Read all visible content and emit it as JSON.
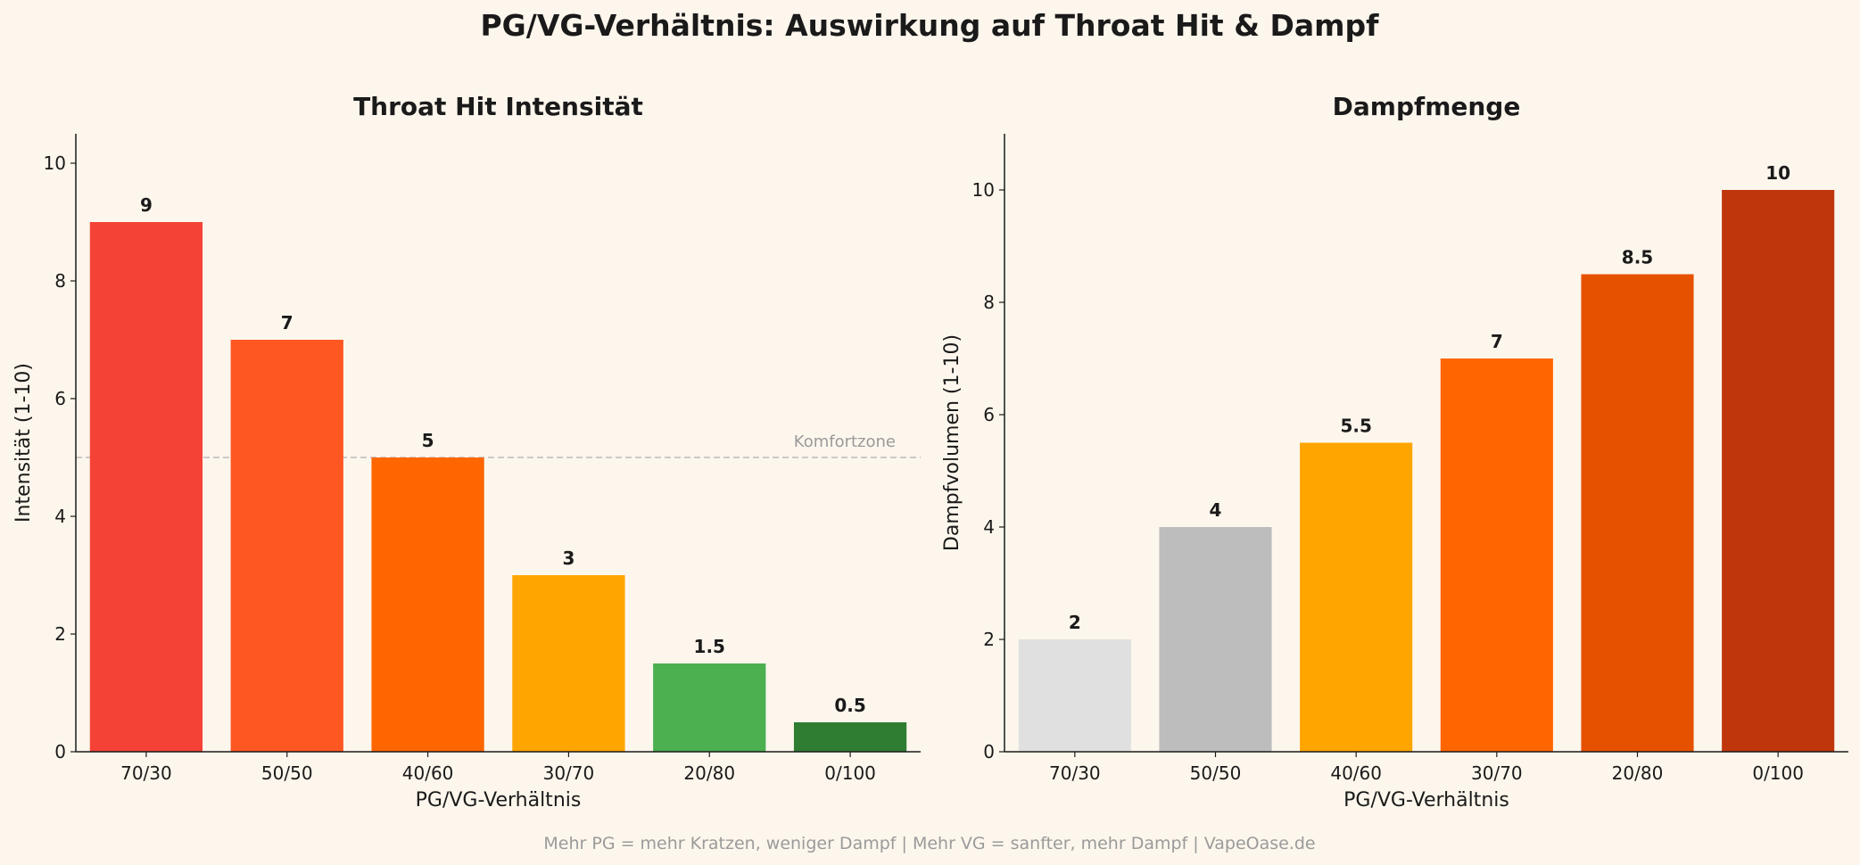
{
  "title": "PG/VG-Verhältnis: Auswirkung auf Throat Hit & Dampf",
  "footnote": "Mehr PG = mehr Kratzen, weniger Dampf | Mehr VG = sanfter, mehr Dampf | VapeOase.de",
  "chart_data": [
    {
      "type": "bar",
      "title": "Throat Hit Intensität",
      "xlabel": "PG/VG-Verhältnis",
      "ylabel": "Intensität (1-10)",
      "categories": [
        "70/30",
        "50/50",
        "40/60",
        "30/70",
        "20/80",
        "0/100"
      ],
      "values": [
        9,
        7,
        5,
        3,
        1.5,
        0.5
      ],
      "value_labels": [
        "9",
        "7",
        "5",
        "3",
        "1.5",
        "0.5"
      ],
      "colors": [
        "#f44336",
        "#ff5722",
        "#ff6600",
        "#ffa500",
        "#4caf50",
        "#2e7d32"
      ],
      "ylim": [
        0,
        10.5
      ],
      "yticks": [
        0,
        2,
        4,
        6,
        8,
        10
      ],
      "reference_line": {
        "value": 5,
        "label": "Komfortzone",
        "color": "#bbbbbb",
        "style": "dashed"
      },
      "grid": false
    },
    {
      "type": "bar",
      "title": "Dampfmenge",
      "xlabel": "PG/VG-Verhältnis",
      "ylabel": "Dampfvolumen (1-10)",
      "categories": [
        "70/30",
        "50/50",
        "40/60",
        "30/70",
        "20/80",
        "0/100"
      ],
      "values": [
        2,
        4,
        5.5,
        7,
        8.5,
        10
      ],
      "value_labels": [
        "2",
        "4",
        "5.5",
        "7",
        "8.5",
        "10"
      ],
      "colors": [
        "#e0e0e0",
        "#bdbdbd",
        "#ffa500",
        "#ff6600",
        "#e65100",
        "#bf360c"
      ],
      "ylim": [
        0,
        11
      ],
      "yticks": [
        0,
        2,
        4,
        6,
        8,
        10
      ],
      "grid": false
    }
  ]
}
